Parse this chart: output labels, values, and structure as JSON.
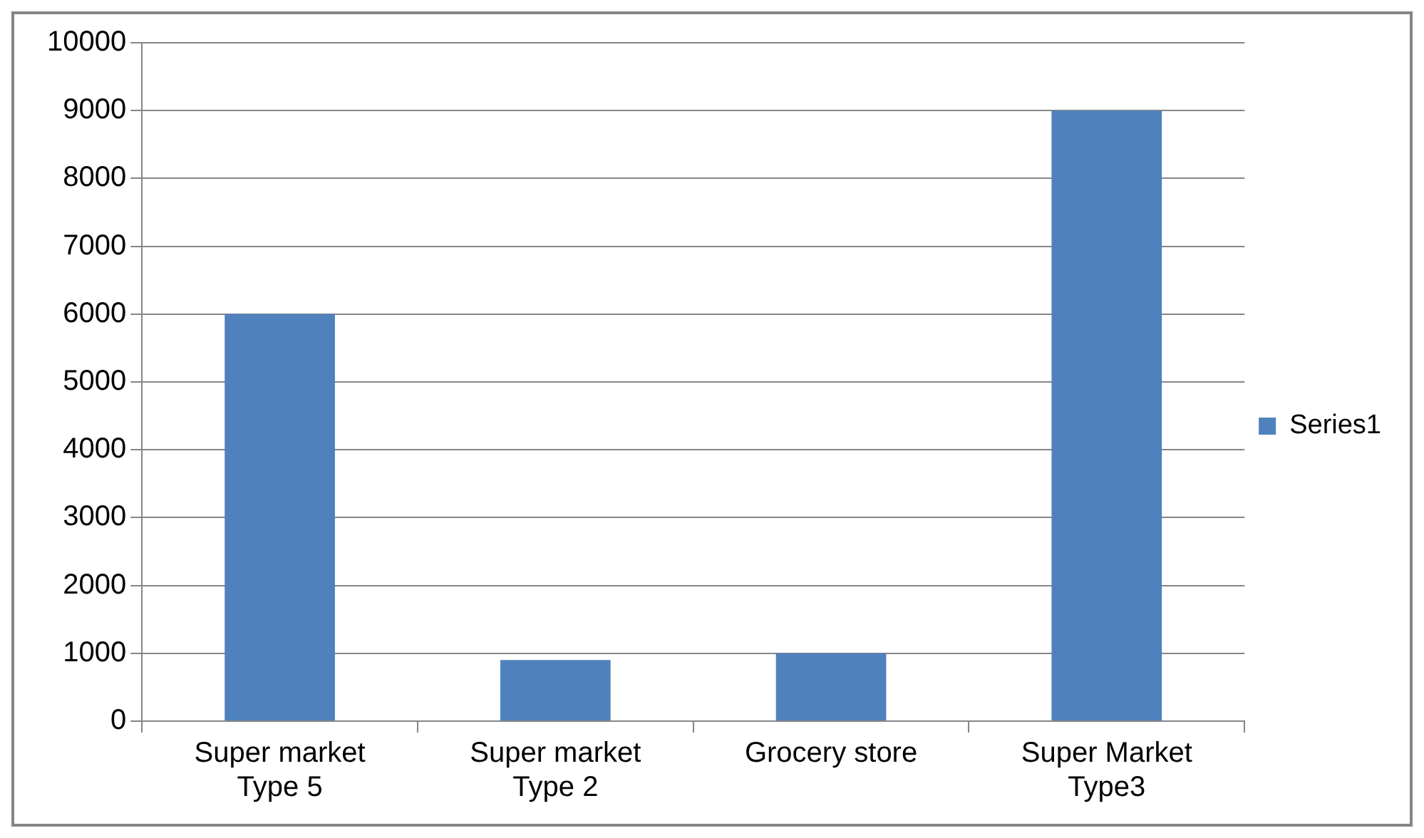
{
  "chart_data": {
    "type": "bar",
    "categories": [
      "Super market Type 5",
      "Super market Type 2",
      "Grocery store",
      "Super Market Type3"
    ],
    "series": [
      {
        "name": "Series1",
        "color": "#4f81bd",
        "values": [
          6000,
          900,
          1000,
          9000
        ]
      }
    ],
    "ylim": [
      0,
      10000
    ],
    "yticks": [
      0,
      1000,
      2000,
      3000,
      4000,
      5000,
      6000,
      7000,
      8000,
      9000,
      10000
    ],
    "grid": "y",
    "legend": "right"
  }
}
